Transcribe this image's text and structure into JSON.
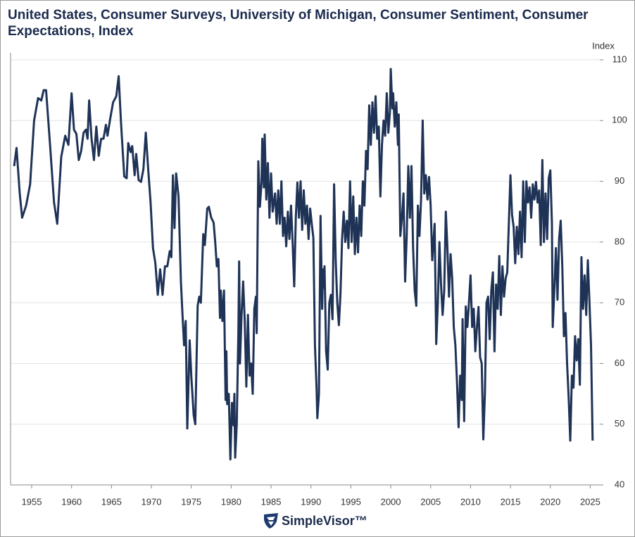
{
  "chart_data": {
    "type": "line",
    "title": "United States, Consumer Surveys, University of Michigan, Consumer Sentiment, Consumer Expectations, Index",
    "y_label": "Index",
    "brand": "SimpleVisor™",
    "xlim": [
      1952.35,
      2026.2
    ],
    "xticks": [
      1955,
      1960,
      1965,
      1970,
      1975,
      1980,
      1985,
      1990,
      1995,
      2000,
      2005,
      2010,
      2015,
      2020,
      2025
    ],
    "ylim": [
      40,
      110
    ],
    "yticks": [
      40,
      50,
      60,
      70,
      80,
      90,
      100,
      110
    ],
    "grid": true,
    "color": "#1f3357",
    "x": [
      1952.8,
      1953.1,
      1953.5,
      1953.8,
      1954.3,
      1954.8,
      1955.3,
      1955.8,
      1956.2,
      1956.5,
      1956.8,
      1957.3,
      1957.8,
      1958.2,
      1958.7,
      1959.2,
      1959.6,
      1960.0,
      1960.3,
      1960.6,
      1960.9,
      1961.2,
      1961.5,
      1961.8,
      1962.0,
      1962.2,
      1962.5,
      1962.8,
      1963.1,
      1963.4,
      1963.7,
      1964.0,
      1964.3,
      1964.5,
      1964.8,
      1965.2,
      1965.6,
      1965.9,
      1966.2,
      1966.6,
      1966.9,
      1967.1,
      1967.4,
      1967.6,
      1967.9,
      1968.1,
      1968.4,
      1968.7,
      1969.0,
      1969.3,
      1969.6,
      1969.9,
      1970.2,
      1970.5,
      1970.8,
      1971.1,
      1971.4,
      1971.7,
      1972.0,
      1972.3,
      1972.5,
      1972.7,
      1972.9,
      1973.1,
      1973.4,
      1973.7,
      1973.9,
      1974.1,
      1974.3,
      1974.5,
      1974.8,
      1975.0,
      1975.3,
      1975.5,
      1975.8,
      1976.0,
      1976.2,
      1976.5,
      1976.7,
      1977.0,
      1977.2,
      1977.5,
      1977.8,
      1978.0,
      1978.2,
      1978.4,
      1978.6,
      1978.7,
      1978.9,
      1979.1,
      1979.3,
      1979.4,
      1979.5,
      1979.7,
      1979.9,
      1980.1,
      1980.3,
      1980.4,
      1980.5,
      1980.7,
      1980.9,
      1981.0,
      1981.1,
      1981.3,
      1981.5,
      1981.7,
      1981.9,
      1982.1,
      1982.3,
      1982.5,
      1982.7,
      1982.9,
      1983.1,
      1983.2,
      1983.4,
      1983.6,
      1983.8,
      1983.9,
      1984.1,
      1984.2,
      1984.4,
      1984.6,
      1984.8,
      1985.0,
      1985.2,
      1985.5,
      1985.7,
      1985.9,
      1986.1,
      1986.3,
      1986.5,
      1986.7,
      1986.9,
      1987.1,
      1987.3,
      1987.5,
      1987.7,
      1987.9,
      1988.1,
      1988.3,
      1988.5,
      1988.7,
      1988.9,
      1989.1,
      1989.3,
      1989.5,
      1989.7,
      1989.9,
      1990.1,
      1990.3,
      1990.5,
      1990.7,
      1990.8,
      1991.0,
      1991.2,
      1991.4,
      1991.5,
      1991.6,
      1991.7,
      1991.9,
      1992.1,
      1992.3,
      1992.5,
      1992.7,
      1992.9,
      1993.1,
      1993.3,
      1993.5,
      1993.7,
      1993.9,
      1994.1,
      1994.3,
      1994.5,
      1994.7,
      1994.9,
      1995.1,
      1995.3,
      1995.5,
      1995.7,
      1995.9,
      1996.1,
      1996.3,
      1996.5,
      1996.7,
      1996.9,
      1997.1,
      1997.3,
      1997.5,
      1997.7,
      1997.9,
      1998.1,
      1998.3,
      1998.5,
      1998.7,
      1998.9,
      1999.1,
      1999.3,
      1999.5,
      1999.7,
      1999.9,
      2000.0,
      2000.2,
      2000.3,
      2000.5,
      2000.7,
      2000.9,
      2001.0,
      2001.2,
      2001.4,
      2001.6,
      2001.8,
      2002.0,
      2002.2,
      2002.4,
      2002.6,
      2002.8,
      2003.0,
      2003.2,
      2003.4,
      2003.6,
      2003.8,
      2004.0,
      2004.2,
      2004.4,
      2004.6,
      2004.8,
      2005.0,
      2005.2,
      2005.5,
      2005.7,
      2005.9,
      2006.1,
      2006.3,
      2006.5,
      2006.7,
      2006.9,
      2007.1,
      2007.3,
      2007.5,
      2007.7,
      2007.9,
      2008.1,
      2008.3,
      2008.5,
      2008.7,
      2008.9,
      2009.0,
      2009.2,
      2009.4,
      2009.6,
      2009.8,
      2010.0,
      2010.2,
      2010.4,
      2010.6,
      2010.8,
      2011.0,
      2011.2,
      2011.4,
      2011.6,
      2011.8,
      2012.0,
      2012.2,
      2012.4,
      2012.6,
      2012.8,
      2013.0,
      2013.2,
      2013.4,
      2013.6,
      2013.8,
      2014.0,
      2014.2,
      2014.4,
      2014.6,
      2014.8,
      2015.0,
      2015.2,
      2015.4,
      2015.6,
      2015.8,
      2016.0,
      2016.2,
      2016.4,
      2016.6,
      2016.8,
      2017.0,
      2017.2,
      2017.4,
      2017.6,
      2017.8,
      2018.0,
      2018.2,
      2018.4,
      2018.6,
      2018.8,
      2019.0,
      2019.2,
      2019.4,
      2019.6,
      2019.8,
      2020.0,
      2020.2,
      2020.3,
      2020.5,
      2020.7,
      2020.9,
      2021.1,
      2021.3,
      2021.5,
      2021.7,
      2021.9,
      2022.1,
      2022.3,
      2022.5,
      2022.7,
      2022.9,
      2023.1,
      2023.3,
      2023.5,
      2023.7,
      2023.9,
      2024.1,
      2024.3,
      2024.5,
      2024.7,
      2024.9,
      2025.1,
      2025.3
    ],
    "values": [
      92.5,
      95.5,
      88,
      84,
      86,
      89.5,
      100,
      103.7,
      103.3,
      105,
      105,
      96,
      86.5,
      83,
      94,
      97.5,
      96,
      104.5,
      98.5,
      97.8,
      93.5,
      95,
      98,
      98.5,
      97,
      103.3,
      97,
      93.5,
      99,
      94.2,
      97,
      97,
      99.3,
      97.5,
      100,
      103,
      104,
      107.3,
      99.5,
      90.8,
      90.5,
      96.3,
      94.8,
      95.8,
      91,
      94.5,
      90.2,
      89.9,
      92,
      98,
      92,
      86.5,
      79,
      76.5,
      71.3,
      75.5,
      71.3,
      76,
      76,
      78.5,
      77.5,
      91,
      82.3,
      91.3,
      87.5,
      73.5,
      68,
      63,
      67,
      49.3,
      63.8,
      58,
      51.5,
      50,
      69.5,
      71,
      70,
      81.3,
      79.5,
      85.5,
      85.8,
      84,
      83.2,
      80,
      76,
      77.2,
      67.5,
      72,
      67,
      72,
      54,
      62,
      53.3,
      55,
      44.2,
      53.5,
      49.8,
      55,
      44.5,
      50,
      65,
      76.8,
      60,
      68,
      73.5,
      67,
      56.2,
      68,
      58,
      60,
      55,
      69,
      71,
      65,
      93.3,
      85.8,
      89.8,
      97,
      89,
      97.7,
      87,
      93,
      84,
      91.3,
      85,
      88,
      83,
      88.5,
      83,
      90,
      81,
      84,
      79.3,
      85,
      80.5,
      86,
      80,
      72.7,
      84,
      89.8,
      84,
      90,
      82,
      88.5,
      83,
      86,
      80.5,
      85.5,
      83,
      80.7,
      63,
      56,
      51,
      55,
      84.3,
      69,
      75.5,
      72.5,
      76,
      62,
      59,
      70,
      71.3,
      67.3,
      89.5,
      77,
      70,
      66.3,
      71.5,
      80.5,
      85,
      80,
      83.5,
      79,
      90,
      80,
      87.5,
      78,
      84,
      78.3,
      86,
      81,
      90,
      86,
      95,
      92,
      102.5,
      96,
      103,
      98,
      104,
      97,
      99,
      87.5,
      96,
      100,
      97.5,
      104.5,
      98,
      101.5,
      108.5,
      102,
      104.5,
      99,
      103,
      96,
      101,
      81,
      84,
      88,
      73.5,
      81,
      92.5,
      84,
      92.5,
      79,
      72,
      69.5,
      86,
      81,
      87,
      100,
      88,
      91,
      87,
      90.7,
      86,
      77,
      83,
      63.2,
      70,
      80,
      73,
      68,
      72,
      85,
      79,
      71,
      78,
      74,
      66,
      63,
      57,
      49.5,
      58,
      54,
      67.3,
      50.5,
      69.4,
      66,
      70,
      74.5,
      66,
      69,
      62,
      66,
      69.3,
      61,
      60,
      47.5,
      55,
      70,
      71,
      64,
      72,
      75,
      62,
      73,
      69,
      77.7,
      68,
      76,
      71,
      74,
      75,
      83,
      91,
      84.5,
      82.5,
      76.5,
      82.5,
      78,
      85,
      77.5,
      90,
      80,
      90,
      86.5,
      89,
      84,
      89.5,
      87,
      89.9,
      86.5,
      88.5,
      79.5,
      93.5,
      80,
      88,
      80.5,
      90.5,
      91.8,
      83,
      66,
      72,
      79,
      70.5,
      80.5,
      83.5,
      76,
      64.5,
      68.3,
      60,
      54.3,
      47.3,
      58,
      56,
      64.5,
      60.5,
      64,
      56.5,
      77.5,
      69,
      74.5,
      68,
      77,
      70.2,
      63,
      47.3
    ]
  }
}
